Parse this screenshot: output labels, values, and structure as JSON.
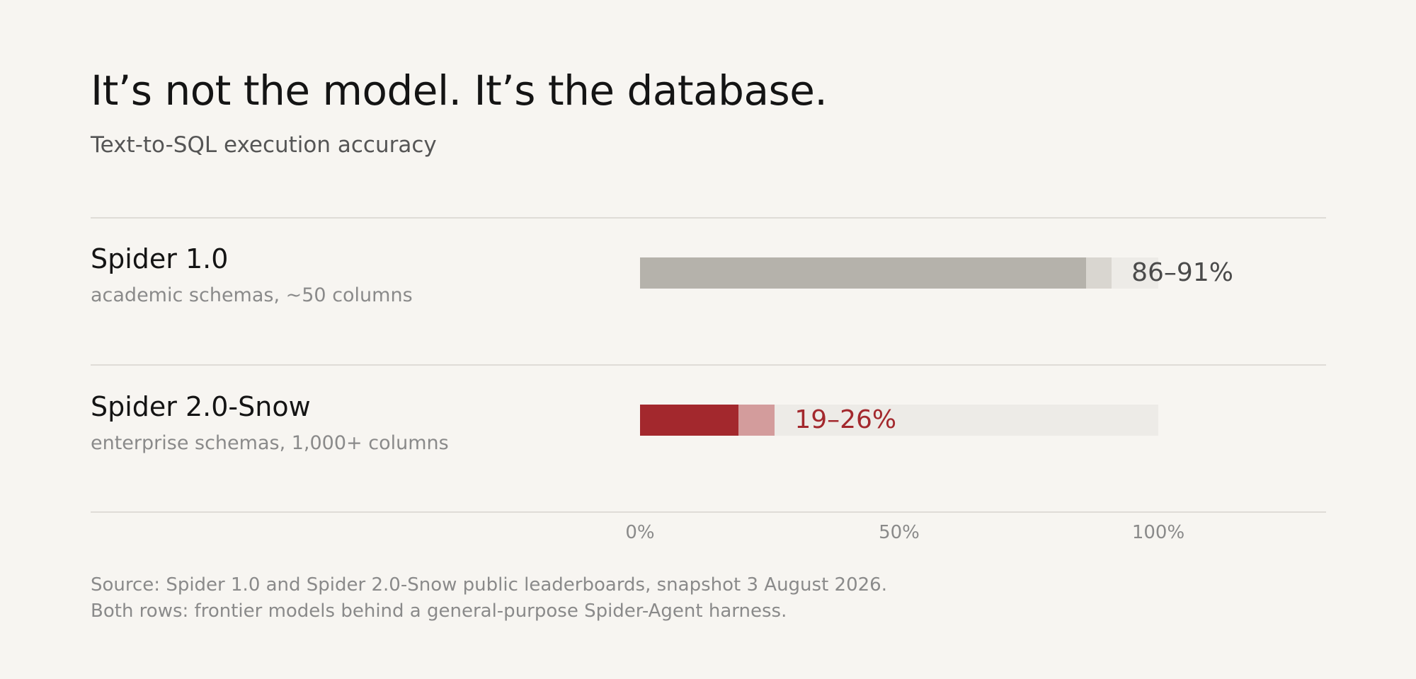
{
  "title": "It’s not the model. It’s the database.",
  "subtitle": "Text-to-SQL execution accuracy",
  "chart_data": {
    "type": "bar",
    "orientation": "horizontal",
    "xlim": [
      0,
      100
    ],
    "x_unit": "%",
    "ticks": [
      "0%",
      "50%",
      "100%"
    ],
    "tick_values": [
      0,
      50,
      100
    ],
    "rows": [
      {
        "label": "Spider 1.0",
        "sublabel": "academic schemas, ~50 columns",
        "low": 86,
        "high": 91,
        "range_label": "86–91%",
        "color": "#b5b2ab",
        "range_color": "#d9d6d0",
        "label_color": "#4a4a4a"
      },
      {
        "label": "Spider 2.0-Snow",
        "sublabel": "enterprise schemas, 1,000+ columns",
        "low": 19,
        "high": 26,
        "range_label": "19–26%",
        "color": "#a3282d",
        "range_color": "#d39c9c",
        "label_color": "#a3282d"
      }
    ],
    "track_color": "#edebe7"
  },
  "source_lines": [
    "Source: Spider 1.0 and Spider 2.0-Snow public leaderboards, snapshot 3 August 2026.",
    "Both rows: frontier models behind a general-purpose Spider-Agent harness."
  ]
}
